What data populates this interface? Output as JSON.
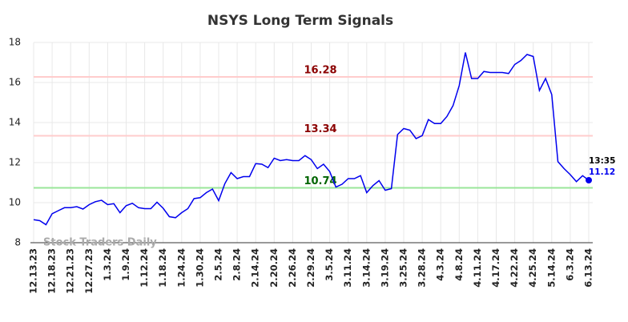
{
  "chart_data": {
    "type": "line",
    "title": "NSYS Long Term Signals",
    "x": [
      "12.13.23",
      null,
      null,
      "12.18.23",
      null,
      null,
      "12.21.23",
      null,
      null,
      "12.27.23",
      null,
      null,
      "1.3.24",
      null,
      null,
      "1.9.24",
      null,
      null,
      "1.12.24",
      null,
      null,
      "1.18.24",
      null,
      null,
      "1.24.24",
      null,
      null,
      "1.30.24",
      null,
      null,
      "2.5.24",
      null,
      null,
      "2.8.24",
      null,
      null,
      "2.14.24",
      null,
      null,
      "2.20.24",
      null,
      null,
      "2.26.24",
      null,
      null,
      "2.29.24",
      null,
      null,
      "3.5.24",
      null,
      null,
      "3.11.24",
      null,
      null,
      "3.14.24",
      null,
      null,
      "3.19.24",
      null,
      null,
      "3.25.24",
      null,
      null,
      "3.28.24",
      null,
      null,
      "4.3.24",
      null,
      null,
      "4.8.24",
      null,
      null,
      "4.11.24",
      null,
      null,
      "4.17.24",
      null,
      null,
      "4.22.24",
      null,
      null,
      "4.25.24",
      null,
      null,
      "5.14.24",
      null,
      null,
      "6.3.24",
      null,
      null,
      "6.13.24"
    ],
    "values": [
      9.15,
      9.1,
      8.9,
      9.45,
      9.6,
      9.75,
      9.75,
      9.8,
      9.68,
      9.9,
      10.05,
      10.12,
      9.9,
      9.95,
      9.5,
      9.85,
      9.97,
      9.75,
      9.7,
      9.7,
      10.02,
      9.72,
      9.3,
      9.25,
      9.5,
      9.7,
      10.2,
      10.25,
      10.5,
      10.68,
      10.1,
      10.95,
      11.5,
      11.2,
      11.3,
      11.3,
      11.95,
      11.92,
      11.75,
      12.22,
      12.1,
      12.15,
      12.1,
      12.1,
      12.35,
      12.15,
      11.7,
      11.92,
      11.55,
      10.78,
      10.92,
      11.2,
      11.2,
      11.35,
      10.5,
      10.85,
      11.1,
      10.62,
      10.7,
      13.4,
      13.7,
      13.62,
      13.2,
      13.35,
      14.15,
      13.95,
      13.95,
      14.3,
      14.85,
      15.85,
      17.5,
      16.2,
      16.2,
      16.55,
      16.5,
      16.5,
      16.5,
      16.45,
      16.9,
      17.1,
      17.4,
      17.3,
      15.6,
      16.2,
      15.4,
      12.05,
      11.7,
      11.4,
      11.05,
      11.35,
      11.12
    ],
    "color": "#0000ee",
    "ylim": [
      8,
      18
    ],
    "yticks": [
      8,
      10,
      12,
      14,
      16,
      18
    ],
    "grid": true,
    "hlines": [
      {
        "value": 16.28,
        "color": "#ffcccc",
        "label_color": "#8b0000"
      },
      {
        "value": 13.34,
        "color": "#ffcccc",
        "label_color": "#8b0000"
      },
      {
        "value": 10.74,
        "color": "#99e699",
        "label_color": "#006400"
      }
    ],
    "last_label": "13:35",
    "watermark": "Stock Traders Daily"
  }
}
